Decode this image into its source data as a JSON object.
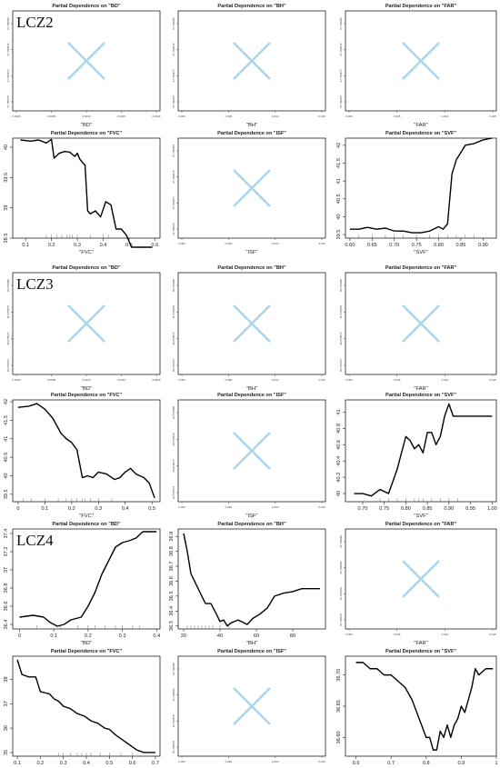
{
  "rows": [
    {
      "label": "LCZ2",
      "panels": [
        {
          "type": "empty",
          "title": "Partial Dependence on \"BD\"",
          "xlabel": "\"BD\"",
          "xticks": [
            "0.0000",
            "0.0005",
            "0.0010",
            "0.0015",
            "0.0020"
          ],
          "yticks": [
            "37.780875",
            "37.780877",
            "37.780879",
            "37.780881"
          ]
        },
        {
          "type": "empty",
          "title": "Partial Dependence on \"BH\"",
          "xlabel": "\"BH\"",
          "xticks": [
            "0.000",
            "0.005",
            "0.010",
            "0.015"
          ],
          "yticks": [
            "37.780875",
            "37.780877",
            "37.780879",
            "37.780881"
          ]
        },
        {
          "type": "empty",
          "title": "Partial Dependence on \"FAR\"",
          "xlabel": "\"FAR\"",
          "xticks": [
            "0.000",
            "0.005",
            "0.010",
            "0.015"
          ],
          "yticks": [
            "37.780875",
            "37.780877",
            "37.780879",
            "37.780881"
          ]
        }
      ]
    },
    {
      "label": "",
      "panels": [
        {
          "type": "line",
          "title": "Partial Dependence on \"FVC\"",
          "xlabel": "\"FVC\"",
          "xlim": [
            0.05,
            0.62
          ],
          "ylim": [
            38.5,
            40.15
          ],
          "xticks": [
            0.1,
            0.2,
            0.3,
            0.4,
            0.5,
            0.6
          ],
          "yticks": [
            38.5,
            39.0,
            39.5,
            40.0
          ],
          "rug": [
            0.18,
            0.2,
            0.22,
            0.24,
            0.26,
            0.27,
            0.28,
            0.3,
            0.35,
            0.4,
            0.42
          ],
          "x": [
            0.08,
            0.12,
            0.15,
            0.18,
            0.2,
            0.21,
            0.23,
            0.25,
            0.27,
            0.29,
            0.3,
            0.31,
            0.33,
            0.34,
            0.35,
            0.37,
            0.39,
            0.41,
            0.43,
            0.45,
            0.47,
            0.49,
            0.51,
            0.53,
            0.56,
            0.59
          ],
          "y": [
            40.12,
            40.1,
            40.12,
            40.07,
            40.13,
            39.82,
            39.9,
            39.93,
            39.92,
            39.85,
            39.9,
            39.8,
            39.7,
            38.95,
            38.9,
            38.95,
            38.85,
            39.1,
            39.05,
            38.65,
            38.65,
            38.55,
            38.35,
            38.35,
            38.35,
            38.35
          ]
        },
        {
          "type": "empty",
          "title": "Partial Dependence on \"ISF\"",
          "xlabel": "\"ISF\"",
          "xticks": [
            "0.000",
            "0.005",
            "0.010",
            "0.015"
          ],
          "yticks": [
            "37.780875",
            "37.780877",
            "37.780879",
            "37.780881"
          ]
        },
        {
          "type": "line",
          "title": "Partial Dependence on \"SVF\"",
          "xlabel": "\"SVF\"",
          "xlim": [
            0.59,
            0.93
          ],
          "ylim": [
            39.4,
            42.2
          ],
          "xticks": [
            0.6,
            0.65,
            0.7,
            0.75,
            0.8,
            0.85,
            0.9
          ],
          "xtickfmt": 2,
          "yticks": [
            39.5,
            40.0,
            40.5,
            41.0,
            41.5,
            42.0
          ],
          "rug": [
            0.62,
            0.65,
            0.68,
            0.7,
            0.72,
            0.75,
            0.78,
            0.8,
            0.82,
            0.84,
            0.86,
            0.88
          ],
          "x": [
            0.6,
            0.62,
            0.64,
            0.66,
            0.68,
            0.7,
            0.72,
            0.74,
            0.76,
            0.78,
            0.8,
            0.81,
            0.82,
            0.83,
            0.84,
            0.85,
            0.86,
            0.88,
            0.9,
            0.92
          ],
          "y": [
            39.65,
            39.65,
            39.7,
            39.65,
            39.68,
            39.6,
            39.6,
            39.55,
            39.55,
            39.6,
            39.72,
            39.65,
            39.8,
            41.2,
            41.6,
            41.8,
            42.0,
            42.05,
            42.15,
            42.2
          ]
        }
      ]
    },
    {
      "label": "LCZ3",
      "panels": [
        {
          "type": "empty",
          "title": "Partial Dependence on \"BD\"",
          "xlabel": "\"BD\"",
          "xticks": [
            "0.0000",
            "0.0005",
            "0.0010",
            "0.0015",
            "0.0020"
          ],
          "yticks": [
            "40.575874",
            "40.575876",
            "40.575878",
            "40.575880"
          ]
        },
        {
          "type": "empty",
          "title": "Partial Dependence on \"BH\"",
          "xlabel": "\"BH\"",
          "xticks": [
            "0.000",
            "0.005",
            "0.010",
            "0.015"
          ],
          "yticks": [
            "40.575874",
            "40.575876",
            "40.575878",
            "40.575880"
          ]
        },
        {
          "type": "empty",
          "title": "Partial Dependence on \"FAR\"",
          "xlabel": "\"FAR\"",
          "xticks": [
            "0.000",
            "0.005",
            "0.010",
            "0.015"
          ],
          "yticks": [
            "40.575874",
            "40.575876",
            "40.575878",
            "40.575880"
          ]
        }
      ]
    },
    {
      "label": "",
      "panels": [
        {
          "type": "line",
          "title": "Partial Dependence on \"FVC\"",
          "xlabel": "\"FVC\"",
          "xlim": [
            -0.02,
            0.53
          ],
          "ylim": [
            39.3,
            42.05
          ],
          "xticks": [
            0.0,
            0.1,
            0.2,
            0.3,
            0.4,
            0.5
          ],
          "yticks": [
            39.5,
            40.0,
            40.5,
            41.0,
            41.5,
            42.0
          ],
          "rug": [
            0.02,
            0.05,
            0.1,
            0.15,
            0.18,
            0.2,
            0.22,
            0.24,
            0.25,
            0.27,
            0.3,
            0.35
          ],
          "x": [
            0.0,
            0.04,
            0.07,
            0.1,
            0.13,
            0.16,
            0.18,
            0.2,
            0.22,
            0.24,
            0.26,
            0.28,
            0.3,
            0.33,
            0.36,
            0.38,
            0.4,
            0.42,
            0.44,
            0.47,
            0.49,
            0.51
          ],
          "y": [
            41.85,
            41.88,
            41.95,
            41.8,
            41.55,
            41.15,
            41.0,
            40.9,
            40.7,
            39.95,
            40.0,
            39.95,
            40.1,
            40.05,
            39.9,
            39.95,
            40.1,
            40.2,
            40.05,
            39.95,
            39.8,
            39.4
          ]
        },
        {
          "type": "empty",
          "title": "Partial Dependence on \"ISF\"",
          "xlabel": "\"ISF\"",
          "xticks": [
            "0.000",
            "0.005",
            "0.010",
            "0.015"
          ],
          "yticks": [
            "40.575874",
            "40.575876",
            "40.575878",
            "40.575880"
          ]
        },
        {
          "type": "line",
          "title": "Partial Dependence on \"SVF\"",
          "xlabel": "\"SVF\"",
          "xlim": [
            0.66,
            1.01
          ],
          "ylim": [
            39.9,
            41.15
          ],
          "xticks": [
            0.7,
            0.75,
            0.8,
            0.85,
            0.9,
            0.95,
            1.0
          ],
          "xtickfmt": 2,
          "yticks": [
            40.0,
            40.2,
            40.4,
            40.6,
            40.8,
            41.0
          ],
          "rug": [
            0.74,
            0.76,
            0.78,
            0.8,
            0.82,
            0.83,
            0.84,
            0.86,
            0.88,
            0.9,
            0.92
          ],
          "x": [
            0.68,
            0.7,
            0.72,
            0.74,
            0.76,
            0.77,
            0.78,
            0.79,
            0.8,
            0.81,
            0.82,
            0.83,
            0.84,
            0.85,
            0.86,
            0.87,
            0.88,
            0.89,
            0.9,
            0.91,
            0.92,
            0.95,
            1.0
          ],
          "y": [
            40.0,
            40.0,
            39.97,
            40.05,
            40.0,
            40.15,
            40.3,
            40.5,
            40.7,
            40.65,
            40.55,
            40.6,
            40.5,
            40.75,
            40.75,
            40.6,
            40.7,
            40.95,
            41.1,
            40.95,
            40.95,
            40.95,
            40.95
          ]
        }
      ]
    },
    {
      "label": "LCZ4",
      "panels": [
        {
          "type": "line",
          "title": "Partial Dependence on \"BD\"",
          "xlabel": "\"BD\"",
          "xlim": [
            -0.02,
            0.41
          ],
          "ylim": [
            36.35,
            37.45
          ],
          "xticks": [
            0.0,
            0.1,
            0.2,
            0.3,
            0.4
          ],
          "yticks": [
            36.4,
            36.6,
            36.8,
            37.0,
            37.2,
            37.4
          ],
          "rug": [
            0.05,
            0.12,
            0.17,
            0.2,
            0.22,
            0.25,
            0.28,
            0.3,
            0.33,
            0.35
          ],
          "x": [
            0.0,
            0.04,
            0.07,
            0.09,
            0.11,
            0.13,
            0.15,
            0.18,
            0.2,
            0.22,
            0.24,
            0.26,
            0.28,
            0.3,
            0.32,
            0.34,
            0.36,
            0.38,
            0.4
          ],
          "y": [
            36.48,
            36.5,
            36.48,
            36.42,
            36.38,
            36.4,
            36.45,
            36.48,
            36.6,
            36.75,
            36.95,
            37.1,
            37.25,
            37.3,
            37.32,
            37.35,
            37.42,
            37.42,
            37.42
          ]
        },
        {
          "type": "line",
          "title": "Partial Dependence on \"BH\"",
          "xlabel": "\"BH\"",
          "xlim": [
            17,
            98
          ],
          "ylim": [
            36.28,
            36.95
          ],
          "xticks": [
            20,
            40,
            60,
            80
          ],
          "yticks": [
            36.3,
            36.4,
            36.5,
            36.6,
            36.7,
            36.8,
            36.9
          ],
          "rug": [
            22,
            24,
            26,
            28,
            30,
            32,
            34,
            36,
            40,
            45
          ],
          "x": [
            20,
            22,
            24,
            26,
            28,
            30,
            32,
            35,
            38,
            40,
            42,
            44,
            46,
            50,
            55,
            58,
            62,
            66,
            70,
            75,
            80,
            85,
            90,
            95
          ],
          "y": [
            36.92,
            36.8,
            36.65,
            36.6,
            36.55,
            36.5,
            36.45,
            36.45,
            36.38,
            36.33,
            36.34,
            36.3,
            36.32,
            36.34,
            36.31,
            36.35,
            36.38,
            36.42,
            36.5,
            36.52,
            36.53,
            36.55,
            36.55,
            36.55
          ]
        },
        {
          "type": "empty",
          "title": "Partial Dependence on \"FAR\"",
          "xlabel": "\"FAR\"",
          "xticks": [
            "0.000",
            "0.005",
            "0.010",
            "0.015"
          ],
          "yticks": [
            "36.700876",
            "36.700878",
            "36.700880",
            "36.700882"
          ]
        }
      ]
    },
    {
      "label": "",
      "panels": [
        {
          "type": "line",
          "title": "Partial Dependence on \"FVC\"",
          "xlabel": "\"FVC\"",
          "xlim": [
            0.08,
            0.72
          ],
          "ylim": [
            34.85,
            38.95
          ],
          "xticks": [
            0.1,
            0.2,
            0.3,
            0.4,
            0.5,
            0.6,
            0.7
          ],
          "yticks": [
            35,
            36,
            37,
            38
          ],
          "rug": [
            0.28,
            0.3,
            0.33,
            0.36,
            0.38,
            0.4,
            0.42,
            0.46,
            0.5,
            0.55,
            0.6
          ],
          "x": [
            0.1,
            0.12,
            0.15,
            0.18,
            0.2,
            0.22,
            0.24,
            0.26,
            0.28,
            0.3,
            0.33,
            0.36,
            0.39,
            0.42,
            0.45,
            0.48,
            0.5,
            0.53,
            0.56,
            0.59,
            0.62,
            0.65,
            0.68,
            0.7
          ],
          "y": [
            38.8,
            38.2,
            38.1,
            38.1,
            37.5,
            37.45,
            37.4,
            37.2,
            37.1,
            36.9,
            36.8,
            36.6,
            36.5,
            36.3,
            36.2,
            36.0,
            35.95,
            35.7,
            35.5,
            35.3,
            35.1,
            35.0,
            35.0,
            35.0
          ]
        },
        {
          "type": "empty",
          "title": "Partial Dependence on \"ISF\"",
          "xlabel": "\"ISF\"",
          "xticks": [
            "0.000",
            "0.005",
            "0.010",
            "0.015"
          ],
          "yticks": [
            "36.700876",
            "36.700878",
            "36.700880",
            "36.700882"
          ]
        },
        {
          "type": "line",
          "title": "Partial Dependence on \"SVF\"",
          "xlabel": "\"SVF\"",
          "xlim": [
            0.57,
            1.0
          ],
          "ylim": [
            36.57,
            36.73
          ],
          "xticks": [
            0.6,
            0.7,
            0.8,
            0.9,
            1.0
          ],
          "yticks": [
            36.6,
            36.65,
            36.7
          ],
          "ytickfmt": 2,
          "rug": [],
          "x": [
            0.6,
            0.62,
            0.64,
            0.66,
            0.68,
            0.7,
            0.72,
            0.74,
            0.76,
            0.78,
            0.8,
            0.81,
            0.82,
            0.83,
            0.84,
            0.85,
            0.86,
            0.87,
            0.88,
            0.89,
            0.9,
            0.91,
            0.92,
            0.93,
            0.94,
            0.95,
            0.97,
            0.99
          ],
          "y": [
            36.72,
            36.72,
            36.71,
            36.71,
            36.7,
            36.7,
            36.69,
            36.68,
            36.66,
            36.63,
            36.6,
            36.6,
            36.58,
            36.58,
            36.61,
            36.6,
            36.62,
            36.6,
            36.62,
            36.63,
            36.65,
            36.64,
            36.66,
            36.68,
            36.71,
            36.7,
            36.71,
            36.71
          ]
        }
      ]
    }
  ],
  "chart_data": [
    {
      "type": "line",
      "title": "Partial Dependence on \"FVC\"",
      "group": "LCZ2"
    },
    {
      "type": "line",
      "title": "Partial Dependence on \"SVF\"",
      "group": "LCZ2"
    },
    {
      "type": "line",
      "title": "Partial Dependence on \"FVC\"",
      "group": "LCZ3"
    },
    {
      "type": "line",
      "title": "Partial Dependence on \"SVF\"",
      "group": "LCZ3"
    },
    {
      "type": "line",
      "title": "Partial Dependence on \"BD\"",
      "group": "LCZ4"
    },
    {
      "type": "line",
      "title": "Partial Dependence on \"BH\"",
      "group": "LCZ4"
    },
    {
      "type": "line",
      "title": "Partial Dependence on \"FVC\"",
      "group": "LCZ4"
    },
    {
      "type": "line",
      "title": "Partial Dependence on \"SVF\"",
      "group": "LCZ4"
    }
  ],
  "colors": {
    "cross": "#a8d4ee",
    "line": "#000000"
  },
  "icons": {
    "empty_panel": "cross-icon"
  }
}
